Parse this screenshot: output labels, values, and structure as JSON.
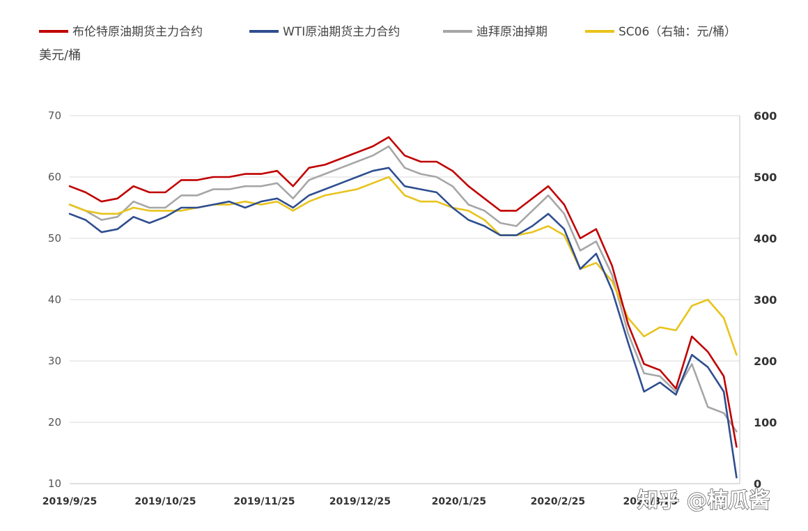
{
  "watermark": "知乎 @楠瓜酱",
  "chart_data": {
    "type": "line",
    "title": "",
    "ylabel": "美元/桶",
    "y2label": "",
    "ylim": [
      10,
      70
    ],
    "y2lim": [
      0,
      600
    ],
    "yticks": [
      "10",
      "20",
      "30",
      "40",
      "50",
      "60",
      "70"
    ],
    "y2ticks": [
      "0",
      "100",
      "200",
      "300",
      "400",
      "500",
      "600"
    ],
    "grid": true,
    "legend_position": "top",
    "xticks": [
      "2019/9/25",
      "2019/10/25",
      "2019/11/25",
      "2019/12/25",
      "2020/1/25",
      "2020/2/25",
      "2020/3/25"
    ],
    "x": [
      "2019-09-25",
      "2019-09-30",
      "2019-10-05",
      "2019-10-10",
      "2019-10-15",
      "2019-10-20",
      "2019-10-25",
      "2019-10-30",
      "2019-11-04",
      "2019-11-09",
      "2019-11-14",
      "2019-11-19",
      "2019-11-24",
      "2019-11-29",
      "2019-12-04",
      "2019-12-09",
      "2019-12-14",
      "2019-12-19",
      "2019-12-24",
      "2019-12-29",
      "2020-01-03",
      "2020-01-08",
      "2020-01-13",
      "2020-01-18",
      "2020-01-23",
      "2020-01-28",
      "2020-02-02",
      "2020-02-07",
      "2020-02-12",
      "2020-02-17",
      "2020-02-22",
      "2020-02-27",
      "2020-03-03",
      "2020-03-08",
      "2020-03-13",
      "2020-03-18",
      "2020-03-23",
      "2020-03-28",
      "2020-04-02",
      "2020-04-07",
      "2020-04-12",
      "2020-04-17",
      "2020-04-21"
    ],
    "series": [
      {
        "name": "布伦特原油期货主力合约",
        "axis": "left",
        "color": "#c00000",
        "values": [
          58.5,
          57.5,
          56.0,
          56.5,
          58.5,
          57.5,
          57.5,
          59.5,
          59.5,
          60.0,
          60.0,
          60.5,
          60.5,
          61.0,
          58.5,
          61.5,
          62.0,
          63.0,
          64.0,
          65.0,
          66.5,
          63.5,
          62.5,
          62.5,
          61.0,
          58.5,
          56.5,
          54.5,
          54.5,
          56.5,
          58.5,
          55.5,
          50.0,
          51.5,
          45.5,
          36.0,
          29.5,
          28.5,
          25.5,
          34.0,
          31.5,
          27.5,
          16.0
        ]
      },
      {
        "name": "WTI原油期货主力合约",
        "axis": "left",
        "color": "#2e4e8f",
        "values": [
          54.0,
          53.0,
          51.0,
          51.5,
          53.5,
          52.5,
          53.5,
          55.0,
          55.0,
          55.5,
          56.0,
          55.0,
          56.0,
          56.5,
          55.0,
          57.0,
          58.0,
          59.0,
          60.0,
          61.0,
          61.5,
          58.5,
          58.0,
          57.5,
          55.0,
          53.0,
          52.0,
          50.5,
          50.5,
          52.0,
          54.0,
          51.5,
          45.0,
          47.5,
          41.5,
          33.0,
          25.0,
          26.5,
          24.5,
          31.0,
          29.0,
          25.0,
          11.0
        ]
      },
      {
        "name": "迪拜原油掉期",
        "axis": "left",
        "color": "#a6a6a6",
        "values": [
          55.5,
          54.5,
          53.0,
          53.5,
          56.0,
          55.0,
          55.0,
          57.0,
          57.0,
          58.0,
          58.0,
          58.5,
          58.5,
          59.0,
          56.5,
          59.5,
          60.5,
          61.5,
          62.5,
          63.5,
          65.0,
          61.5,
          60.5,
          60.0,
          58.5,
          55.5,
          54.5,
          52.5,
          52.0,
          54.5,
          57.0,
          54.0,
          48.0,
          49.5,
          44.0,
          34.5,
          28.0,
          27.5,
          25.0,
          29.5,
          22.5,
          21.5,
          18.5
        ]
      },
      {
        "name": "SC06（右轴：元/桶）",
        "axis": "right",
        "color": "#e8c31c",
        "values": [
          455,
          445,
          440,
          440,
          450,
          445,
          445,
          445,
          450,
          455,
          455,
          460,
          455,
          460,
          445,
          460,
          470,
          475,
          480,
          490,
          500,
          470,
          460,
          460,
          450,
          445,
          430,
          405,
          405,
          410,
          420,
          405,
          350,
          360,
          330,
          270,
          240,
          255,
          250,
          290,
          300,
          270,
          210
        ]
      }
    ]
  }
}
